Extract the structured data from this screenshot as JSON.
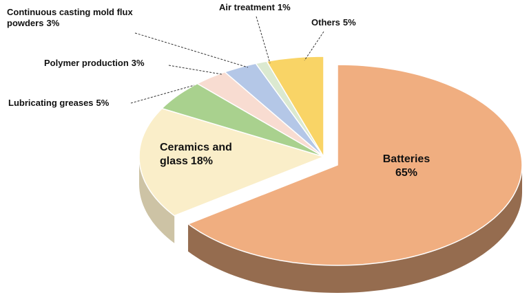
{
  "chart_data": {
    "type": "pie3d",
    "categories": [
      "Batteries",
      "Ceramics and glass",
      "Lubricating greases",
      "Polymer production",
      "Continuous casting mold flux powders",
      "Air treatment",
      "Others"
    ],
    "values": [
      65,
      18,
      5,
      3,
      3,
      1,
      5
    ],
    "value_labels": [
      "65%",
      "18%",
      "5%",
      "3%",
      "3%",
      "1%",
      "5%"
    ],
    "colors": [
      "#f0ae80",
      "#faeec9",
      "#a9d18e",
      "#f8dcd1",
      "#b4c7e7",
      "#dbe9d0",
      "#f9d466"
    ]
  }
}
